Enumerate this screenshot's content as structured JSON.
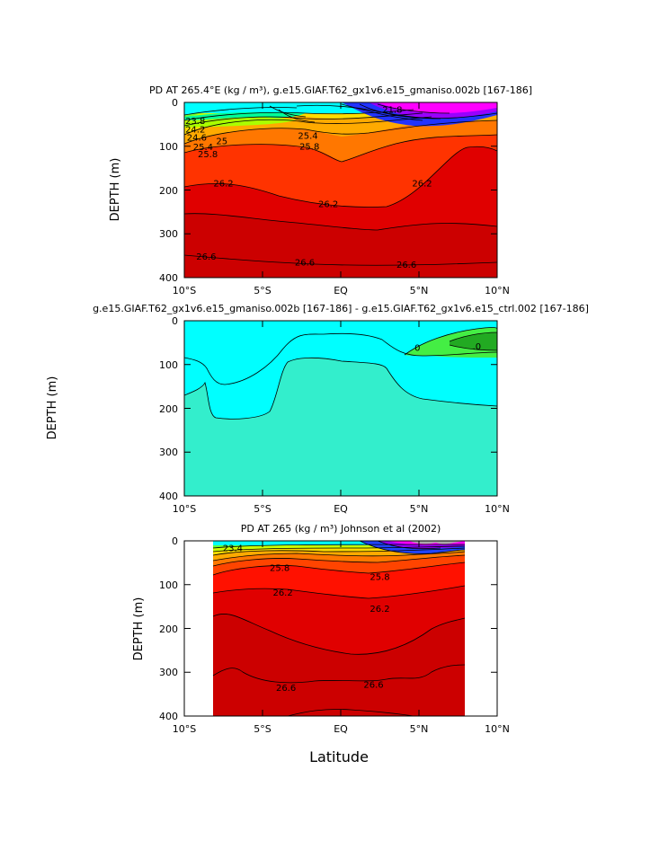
{
  "chart_data": [
    {
      "type": "contour",
      "title": "PD AT 265.4°E (kg / m³), g.e15.GIAF.T62_gx1v6.e15_gmaniso.002b [167-186]",
      "ylabel": "DEPTH (m)",
      "xlabel": "",
      "xlim": [
        -10,
        10
      ],
      "ylim": [
        400,
        0
      ],
      "x_ticks": [
        "10°S",
        "5°S",
        "EQ",
        "5°N",
        "10°N"
      ],
      "y_ticks": [
        "0",
        "100",
        "200",
        "300",
        "400"
      ],
      "contour_labels": [
        {
          "text": "23.8",
          "x": -9.3,
          "y": 42
        },
        {
          "text": "24.2",
          "x": -9.3,
          "y": 62
        },
        {
          "text": "24.6",
          "x": -9.2,
          "y": 80
        },
        {
          "text": "25",
          "x": -7.6,
          "y": 88
        },
        {
          "text": "25.4",
          "x": -8.8,
          "y": 102
        },
        {
          "text": "25.8",
          "x": -8.5,
          "y": 118
        },
        {
          "text": "25.8",
          "x": -2.0,
          "y": 100
        },
        {
          "text": "25.4",
          "x": -2.1,
          "y": 76
        },
        {
          "text": "21.8",
          "x": 3.3,
          "y": 16
        },
        {
          "text": "26.2",
          "x": -7.5,
          "y": 185
        },
        {
          "text": "26.2",
          "x": -0.8,
          "y": 232
        },
        {
          "text": "26.2",
          "x": 5.2,
          "y": 185
        },
        {
          "text": "26.6",
          "x": -8.6,
          "y": 352
        },
        {
          "text": "26.6",
          "x": -2.3,
          "y": 365
        },
        {
          "text": "26.6",
          "x": 4.2,
          "y": 370
        }
      ]
    },
    {
      "type": "contour",
      "title": "g.e15.GIAF.T62_gx1v6.e15_gmaniso.002b [167-186] - g.e15.GIAF.T62_gx1v6.e15_ctrl.002 [167-186]",
      "ylabel": "DEPTH (m)",
      "xlabel": "",
      "xlim": [
        -10,
        10
      ],
      "ylim": [
        400,
        0
      ],
      "x_ticks": [
        "10°S",
        "5°S",
        "EQ",
        "5°N",
        "10°N"
      ],
      "y_ticks": [
        "0",
        "100",
        "200",
        "300",
        "400"
      ],
      "contour_labels": [
        {
          "text": "0",
          "x": 4.9,
          "y": 62
        },
        {
          "text": ".0",
          "x": 8.7,
          "y": 58
        }
      ]
    },
    {
      "type": "contour",
      "title": "PD AT 265 (kg / m³) Johnson et al (2002)",
      "ylabel": "DEPTH (m)",
      "xlabel": "Latitude",
      "xlim": [
        -10,
        10
      ],
      "ylim": [
        400,
        0
      ],
      "data_extent_x": [
        -8,
        8
      ],
      "x_ticks": [
        "10°S",
        "5°S",
        "EQ",
        "5°N",
        "10°N"
      ],
      "y_ticks": [
        "0",
        "100",
        "200",
        "300",
        "400"
      ],
      "contour_labels": [
        {
          "text": "23.4",
          "x": -6.9,
          "y": 16
        },
        {
          "text": "25.8",
          "x": -3.9,
          "y": 62
        },
        {
          "text": "26.2",
          "x": -3.7,
          "y": 118
        },
        {
          "text": "26.2",
          "x": 2.5,
          "y": 155
        },
        {
          "text": "25.8",
          "x": 2.5,
          "y": 82
        },
        {
          "text": "26.6",
          "x": -3.5,
          "y": 335
        },
        {
          "text": "26.6",
          "x": 2.1,
          "y": 328
        }
      ]
    }
  ],
  "colors": {
    "band_0": "#00ffff",
    "band_1": "#00ddff",
    "band_2": "#00ff99",
    "band_3": "#66ff33",
    "band_4": "#ccff00",
    "band_5": "#ffdd00",
    "band_6": "#ffaa00",
    "band_7": "#ff7700",
    "band_8": "#ff4400",
    "band_9": "#ff1100",
    "band_10": "#e00000",
    "band_11": "#cc0000",
    "top_surface": "#ff00ff",
    "diff_main": "#33eecc",
    "diff_light": "#00ffff",
    "diff_green": "#44ee44",
    "diff_dark": "#22aa22"
  }
}
